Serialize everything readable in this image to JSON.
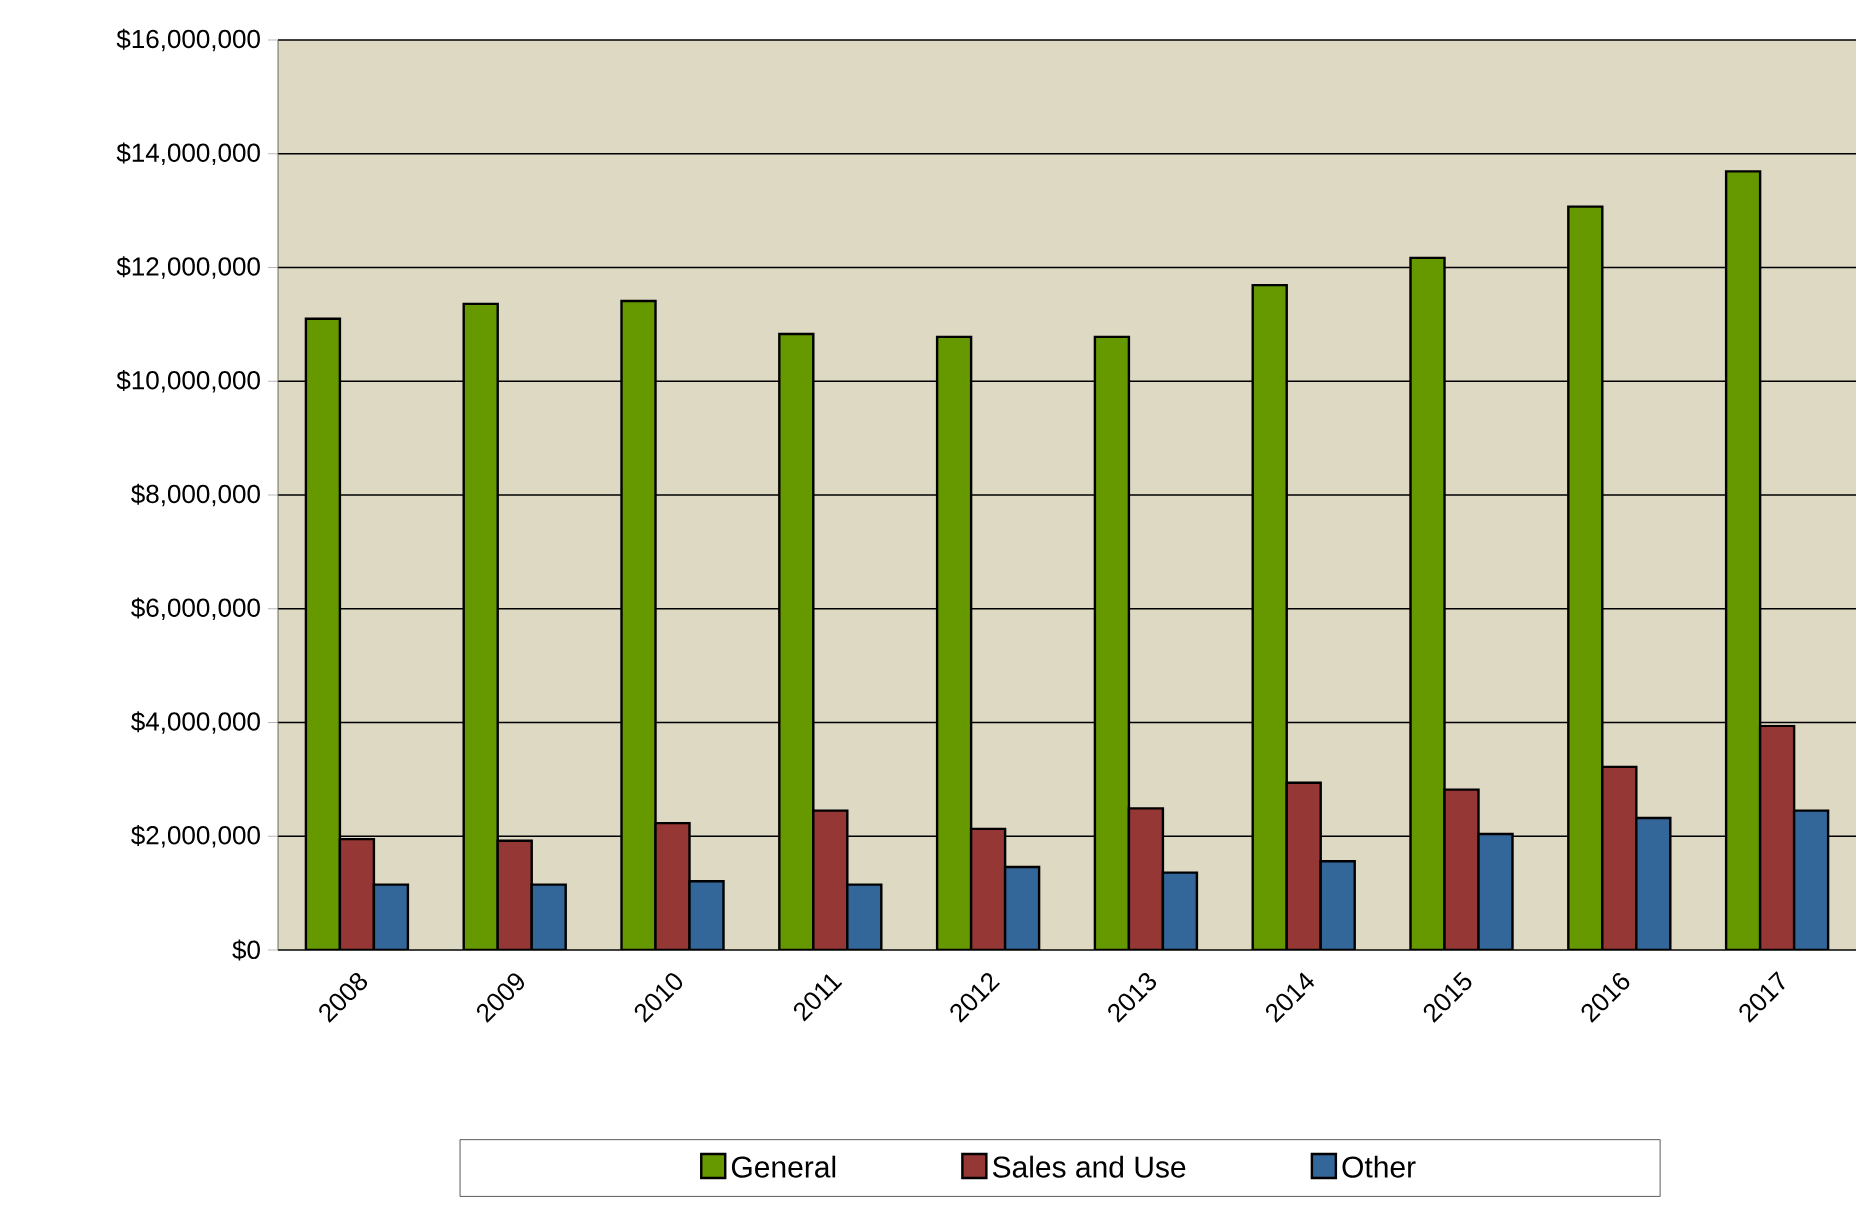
{
  "chart_data": {
    "type": "bar",
    "categories": [
      "2008",
      "2009",
      "2010",
      "2011",
      "2012",
      "2013",
      "2014",
      "2015",
      "2016",
      "2017"
    ],
    "series": [
      {
        "name": "General",
        "color": "#669900",
        "values": [
          11100000,
          11360000,
          11410000,
          10830000,
          10780000,
          10780000,
          11690000,
          12170000,
          13070000,
          13690000
        ]
      },
      {
        "name": "Sales and Use",
        "color": "#953735",
        "values": [
          1950000,
          1920000,
          2230000,
          2450000,
          2130000,
          2490000,
          2940000,
          2820000,
          3220000,
          3940000
        ]
      },
      {
        "name": "Other",
        "color": "#336699",
        "values": [
          1150000,
          1150000,
          1210000,
          1150000,
          1460000,
          1360000,
          1560000,
          2040000,
          2320000,
          2450000
        ]
      }
    ],
    "ylim": [
      0,
      16000000
    ],
    "yticks": [
      {
        "value": 0,
        "label": "$0"
      },
      {
        "value": 2000000,
        "label": "$2,000,000"
      },
      {
        "value": 4000000,
        "label": "$4,000,000"
      },
      {
        "value": 6000000,
        "label": "$6,000,000"
      },
      {
        "value": 8000000,
        "label": "$8,000,000"
      },
      {
        "value": 10000000,
        "label": "$10,000,000"
      },
      {
        "value": 12000000,
        "label": "$12,000,000"
      },
      {
        "value": 14000000,
        "label": "$14,000,000"
      },
      {
        "value": 16000000,
        "label": "$16,000,000"
      }
    ],
    "grid": "y",
    "legend": "bottom"
  }
}
